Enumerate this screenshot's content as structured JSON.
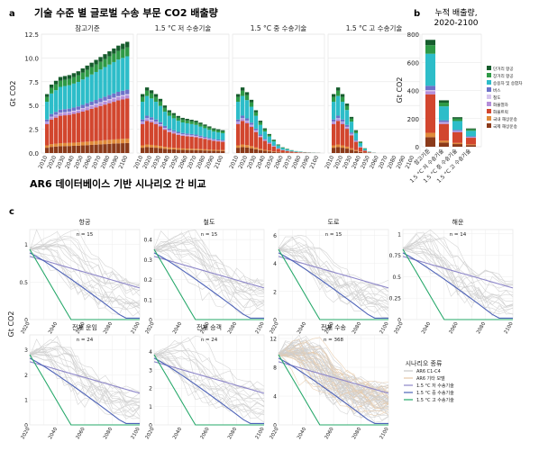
{
  "panel_labels": {
    "a": "a",
    "b": "b",
    "c": "c"
  },
  "titles": {
    "a": "기술 수준 별 글로벌 수송 부문 CO2 배출량",
    "b": "누적 배출량,\n2020-2100",
    "c": "AR6 데이터베이스 기반 시나리오 간 비교"
  },
  "legend_c_title": "시나리오 종류",
  "chart_data": [
    {
      "type": "bar",
      "id": "a",
      "stacked": true,
      "facets": [
        "참고기준",
        "1.5 °C 저 수송기술",
        "1.5 °C 중 수송기술",
        "1.5 °C 고 수송기술"
      ],
      "categories": [
        "2010",
        "2015",
        "2020",
        "2025",
        "2030",
        "2035",
        "2040",
        "2045",
        "2050",
        "2055",
        "2060",
        "2065",
        "2070",
        "2075",
        "2080",
        "2085",
        "2090",
        "2095",
        "2100"
      ],
      "tick_labels": [
        "2010",
        "2020",
        "2030",
        "2040",
        "2050",
        "2060",
        "2070",
        "2080",
        "2090",
        "2100"
      ],
      "ylabel": "Gt CO2",
      "yticks": [
        0.0,
        2.5,
        5.0,
        7.5,
        10.0,
        12.5
      ],
      "ylim": [
        0,
        12.5
      ],
      "totals": [
        [
          6.2,
          7.2,
          7.6,
          8.0,
          8.1,
          8.2,
          8.4,
          8.6,
          8.9,
          9.2,
          9.5,
          9.8,
          10.1,
          10.4,
          10.7,
          11.0,
          11.3,
          11.5,
          11.7
        ],
        [
          6.2,
          6.9,
          6.6,
          6.2,
          5.7,
          5.0,
          4.5,
          4.2,
          3.9,
          3.7,
          3.6,
          3.5,
          3.4,
          3.2,
          3.0,
          2.8,
          2.6,
          2.5,
          2.4
        ],
        [
          6.2,
          6.9,
          6.4,
          5.6,
          4.5,
          3.4,
          2.6,
          2.0,
          1.4,
          0.9,
          0.6,
          0.45,
          0.3,
          0.2,
          0.15,
          0.1,
          0.07,
          0.05,
          0.03
        ],
        [
          6.2,
          6.9,
          6.2,
          5.2,
          3.8,
          2.4,
          1.2,
          0.5,
          0.15,
          0.05,
          0,
          0,
          0,
          0,
          0,
          0,
          0,
          0,
          0
        ]
      ],
      "series": [
        {
          "name": "국제 해상운송",
          "color": "#8B3A1A",
          "share": 0.09
        },
        {
          "name": "국내 해상운송",
          "color": "#E08A3A",
          "share": 0.04
        },
        {
          "name": "화물트럭",
          "color": "#D2462E",
          "share": 0.36
        },
        {
          "name": "화물열차",
          "color": "#B58ED9",
          "share": 0.03
        },
        {
          "name": "철도",
          "color": "#D7C6EE",
          "share": 0.01
        },
        {
          "name": "버스",
          "color": "#6D72C9",
          "share": 0.04
        },
        {
          "name": "승용차 및 승합차",
          "color": "#2DBDC9",
          "share": 0.3
        },
        {
          "name": "장거리 항공",
          "color": "#2E9A46",
          "share": 0.08
        },
        {
          "name": "단거리 항공",
          "color": "#155C2C",
          "share": 0.05
        }
      ]
    },
    {
      "type": "bar",
      "id": "b",
      "stacked": true,
      "categories": [
        "참고기준",
        "1.5 °C 저 수송기술",
        "1.5 °C 중 수송기술",
        "1.5 °C 고 수송기술"
      ],
      "ylabel": "Gt CO2",
      "yticks": [
        0,
        200,
        400,
        600,
        800
      ],
      "ylim": [
        0,
        800
      ],
      "totals": [
        760,
        330,
        210,
        130
      ],
      "legend": [
        "단거리 항공",
        "장거리 항공",
        "승용차 및 승합차",
        "버스",
        "철도",
        "화물열차",
        "화물트럭",
        "국내 해상운송",
        "국제 해상운송"
      ]
    },
    {
      "type": "line",
      "id": "c",
      "ylabel": "Gt CO2",
      "xticks": [
        "2020",
        "2040",
        "2060",
        "2080",
        "2100"
      ],
      "xlim": [
        2020,
        2100
      ],
      "panels": [
        {
          "title": "항공",
          "n": "n = 15",
          "ylim": [
            0,
            1.2
          ],
          "yticks": [
            0.0,
            0.5,
            1.0
          ]
        },
        {
          "title": "철도",
          "n": "n = 15",
          "ylim": [
            0,
            0.45
          ],
          "yticks": [
            0.0,
            0.1,
            0.2,
            0.3,
            0.4
          ]
        },
        {
          "title": "도로",
          "n": "n = 15",
          "ylim": [
            0,
            6.4
          ],
          "yticks": [
            0,
            2,
            4,
            6
          ]
        },
        {
          "title": "해운",
          "n": "n = 14",
          "ylim": [
            0,
            1.05
          ],
          "yticks": [
            0.0,
            0.25,
            0.5,
            0.75,
            1.0
          ]
        },
        {
          "title": "전체 운임",
          "n": "n = 24",
          "ylim": [
            0,
            3.6
          ],
          "yticks": [
            0,
            1,
            2,
            3
          ]
        },
        {
          "title": "전체 승객",
          "n": "n = 24",
          "ylim": [
            0,
            4.9
          ],
          "yticks": [
            0,
            1,
            2,
            3,
            4
          ]
        },
        {
          "title": "전체 수송",
          "n": "n = 368",
          "ylim": [
            0,
            12.5
          ],
          "yticks": [
            0,
            4,
            8,
            12
          ]
        }
      ],
      "legend": [
        {
          "name": "AR6 C1-C4",
          "color": "#c8c8c8"
        },
        {
          "name": "AR6 기타 모델",
          "color": "#e6c9a8"
        },
        {
          "name": "1.5 °C 저 수송기술",
          "color": "#8d86c9"
        },
        {
          "name": "1.5 °C 중 수송기술",
          "color": "#4e63b8"
        },
        {
          "name": "1.5 °C 고 수송기술",
          "color": "#26a86a"
        }
      ]
    }
  ]
}
